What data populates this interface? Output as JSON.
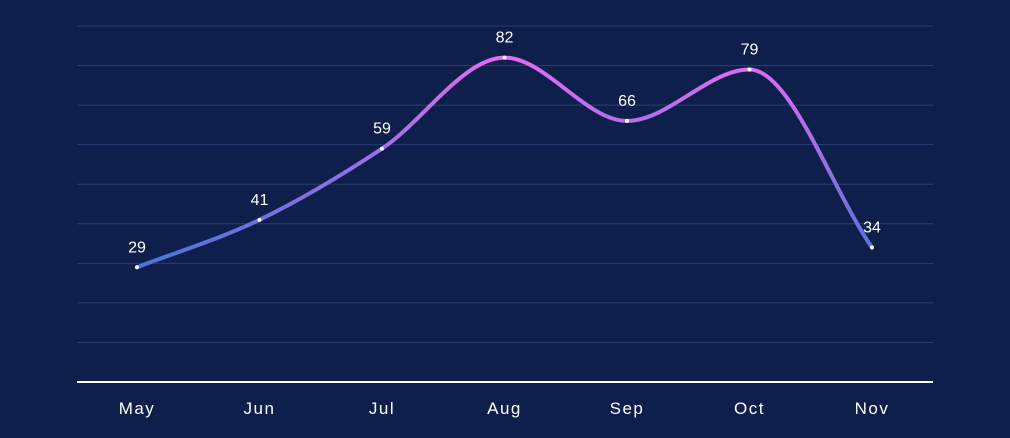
{
  "chart_data": {
    "type": "line",
    "categories": [
      "May",
      "Jun",
      "Jul",
      "Aug",
      "Sep",
      "Oct",
      "Nov"
    ],
    "values": [
      29,
      41,
      59,
      82,
      66,
      79,
      34
    ],
    "ylim": [
      0,
      90
    ],
    "grid": true,
    "smooth": true,
    "show_data_labels": true,
    "colors": {
      "background": "#0f1f4b",
      "grid": "#2a3d73",
      "axis": "#ffffff",
      "line_gradient": [
        "#4a74d6",
        "#e46cf3"
      ],
      "drop_line": "#ffffff",
      "text": "#ffffff"
    }
  }
}
